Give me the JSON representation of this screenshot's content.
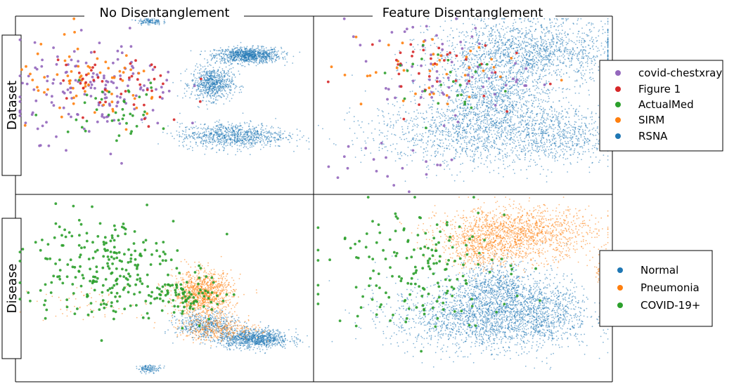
{
  "column_titles": [
    "No Disentanglement",
    "Feature Disentanglement"
  ],
  "row_labels": [
    "Dataset",
    "Disease"
  ],
  "legends": {
    "dataset": [
      {
        "label": "covid-chestxray",
        "color": "#9467bd"
      },
      {
        "label": "Figure 1",
        "color": "#d62728"
      },
      {
        "label": "ActualMed",
        "color": "#2ca02c"
      },
      {
        "label": "SIRM",
        "color": "#ff7f0e"
      },
      {
        "label": "RSNA",
        "color": "#1f77b4"
      }
    ],
    "disease": [
      {
        "label": "Normal",
        "color": "#1f77b4"
      },
      {
        "label": "Pneumonia",
        "color": "#ff7f0e"
      },
      {
        "label": "COVID-19+",
        "color": "#2ca02c"
      }
    ]
  },
  "chart_data": {
    "type": "scatter",
    "description_of_axes": "2-D embedding; no axis ticks or labels shown",
    "panels": [
      {
        "row": "Dataset",
        "column": "No Disentanglement",
        "series": [
          {
            "name": "RSNA",
            "color": "#1f77b4",
            "clusters": [
              {
                "cx": 0.78,
                "cy": 0.78,
                "sx": 0.055,
                "sy": 0.022,
                "n": 950
              },
              {
                "cx": 0.66,
                "cy": 0.62,
                "sx": 0.035,
                "sy": 0.045,
                "n": 700
              },
              {
                "cx": 0.73,
                "cy": 0.33,
                "sx": 0.09,
                "sy": 0.035,
                "n": 900
              },
              {
                "cx": 0.45,
                "cy": 0.97,
                "sx": 0.02,
                "sy": 0.01,
                "n": 120
              }
            ]
          },
          {
            "name": "covid-chestxray",
            "color": "#9467bd",
            "clusters": [
              {
                "cx": 0.27,
                "cy": 0.58,
                "sx": 0.14,
                "sy": 0.13,
                "n": 160
              }
            ]
          },
          {
            "name": "SIRM",
            "color": "#ff7f0e",
            "clusters": [
              {
                "cx": 0.25,
                "cy": 0.6,
                "sx": 0.13,
                "sy": 0.12,
                "n": 70
              }
            ]
          },
          {
            "name": "Figure 1",
            "color": "#d62728",
            "clusters": [
              {
                "cx": 0.35,
                "cy": 0.6,
                "sx": 0.12,
                "sy": 0.12,
                "n": 45
              }
            ]
          },
          {
            "name": "ActualMed",
            "color": "#2ca02c",
            "clusters": [
              {
                "cx": 0.32,
                "cy": 0.47,
                "sx": 0.1,
                "sy": 0.08,
                "n": 40
              }
            ]
          }
        ]
      },
      {
        "row": "Dataset",
        "column": "Feature Disentanglement",
        "series": [
          {
            "name": "RSNA",
            "color": "#1f77b4",
            "clusters": [
              {
                "cx": 0.72,
                "cy": 0.8,
                "sx": 0.16,
                "sy": 0.09,
                "n": 1600
              },
              {
                "cx": 0.6,
                "cy": 0.55,
                "sx": 0.09,
                "sy": 0.1,
                "n": 900
              },
              {
                "cx": 0.53,
                "cy": 0.35,
                "sx": 0.17,
                "sy": 0.1,
                "n": 1200
              },
              {
                "cx": 0.82,
                "cy": 0.33,
                "sx": 0.1,
                "sy": 0.08,
                "n": 600
              }
            ]
          },
          {
            "name": "covid-chestxray",
            "color": "#9467bd",
            "clusters": [
              {
                "cx": 0.4,
                "cy": 0.7,
                "sx": 0.15,
                "sy": 0.14,
                "n": 70
              },
              {
                "cx": 0.3,
                "cy": 0.15,
                "sx": 0.12,
                "sy": 0.06,
                "n": 20
              }
            ]
          },
          {
            "name": "SIRM",
            "color": "#ff7f0e",
            "clusters": [
              {
                "cx": 0.38,
                "cy": 0.7,
                "sx": 0.16,
                "sy": 0.14,
                "n": 40
              }
            ]
          },
          {
            "name": "Figure 1",
            "color": "#d62728",
            "clusters": [
              {
                "cx": 0.33,
                "cy": 0.72,
                "sx": 0.14,
                "sy": 0.1,
                "n": 35
              }
            ]
          },
          {
            "name": "ActualMed",
            "color": "#2ca02c",
            "clusters": [
              {
                "cx": 0.42,
                "cy": 0.65,
                "sx": 0.13,
                "sy": 0.12,
                "n": 25
              }
            ]
          }
        ]
      },
      {
        "row": "Disease",
        "column": "No Disentanglement",
        "series": [
          {
            "name": "Normal",
            "color": "#1f77b4",
            "clusters": [
              {
                "cx": 0.8,
                "cy": 0.23,
                "sx": 0.06,
                "sy": 0.025,
                "n": 950
              },
              {
                "cx": 0.64,
                "cy": 0.3,
                "sx": 0.05,
                "sy": 0.035,
                "n": 500
              },
              {
                "cx": 0.45,
                "cy": 0.07,
                "sx": 0.02,
                "sy": 0.01,
                "n": 120
              }
            ]
          },
          {
            "name": "Pneumonia",
            "color": "#ff7f0e",
            "clusters": [
              {
                "cx": 0.63,
                "cy": 0.47,
                "sx": 0.05,
                "sy": 0.06,
                "n": 1100
              },
              {
                "cx": 0.68,
                "cy": 0.28,
                "sx": 0.07,
                "sy": 0.03,
                "n": 350
              },
              {
                "cx": 0.25,
                "cy": 0.42,
                "sx": 0.09,
                "sy": 0.05,
                "n": 60
              }
            ]
          },
          {
            "name": "COVID-19+",
            "color": "#2ca02c",
            "clusters": [
              {
                "cx": 0.28,
                "cy": 0.62,
                "sx": 0.13,
                "sy": 0.14,
                "n": 240
              },
              {
                "cx": 0.58,
                "cy": 0.45,
                "sx": 0.06,
                "sy": 0.06,
                "n": 90
              }
            ]
          }
        ]
      },
      {
        "row": "Disease",
        "column": "Feature Disentanglement",
        "series": [
          {
            "name": "Normal",
            "color": "#1f77b4",
            "clusters": [
              {
                "cx": 0.56,
                "cy": 0.35,
                "sx": 0.15,
                "sy": 0.09,
                "n": 1700
              },
              {
                "cx": 0.73,
                "cy": 0.38,
                "sx": 0.1,
                "sy": 0.1,
                "n": 900
              },
              {
                "cx": 0.6,
                "cy": 0.52,
                "sx": 0.06,
                "sy": 0.06,
                "n": 400
              }
            ]
          },
          {
            "name": "Pneumonia",
            "color": "#ff7f0e",
            "clusters": [
              {
                "cx": 0.68,
                "cy": 0.79,
                "sx": 0.13,
                "sy": 0.07,
                "n": 1500
              },
              {
                "cx": 0.56,
                "cy": 0.7,
                "sx": 0.06,
                "sy": 0.05,
                "n": 300
              },
              {
                "cx": 0.96,
                "cy": 0.58,
                "sx": 0.01,
                "sy": 0.02,
                "n": 40
              }
            ]
          },
          {
            "name": "COVID-19+",
            "color": "#2ca02c",
            "clusters": [
              {
                "cx": 0.35,
                "cy": 0.62,
                "sx": 0.15,
                "sy": 0.16,
                "n": 180
              }
            ]
          }
        ]
      }
    ]
  }
}
